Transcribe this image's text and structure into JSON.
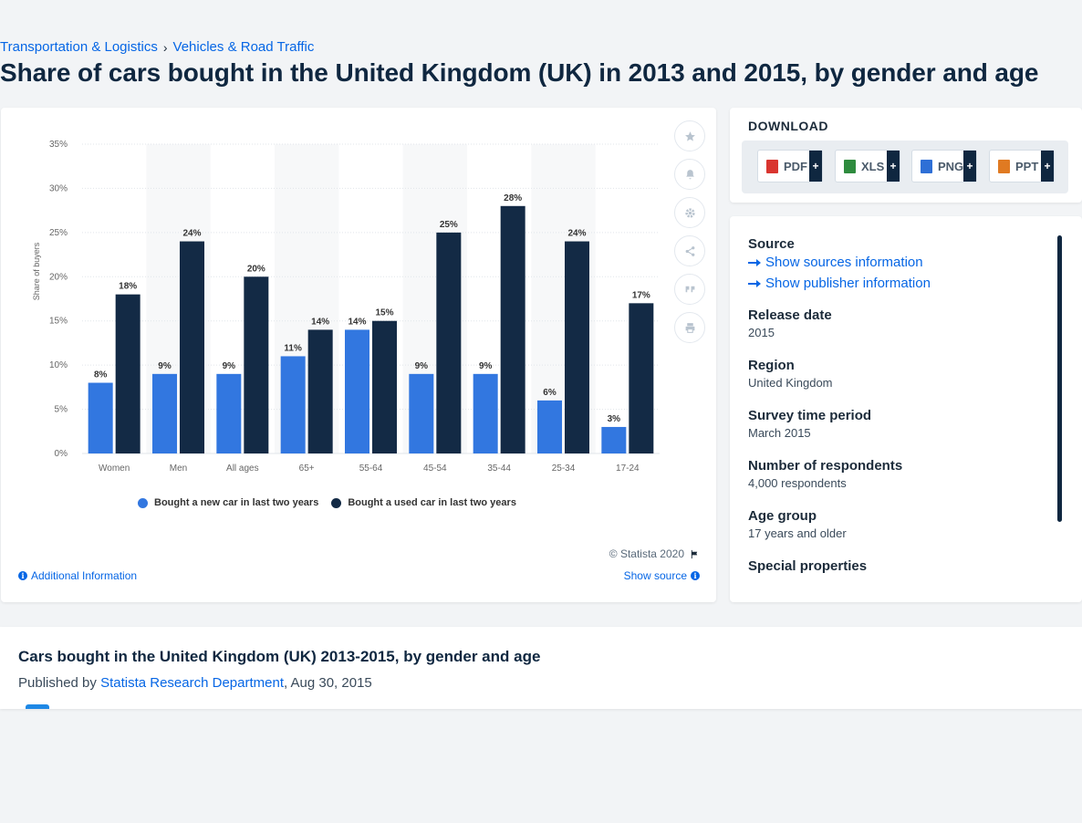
{
  "breadcrumb": {
    "item1": "Transportation & Logistics",
    "separator": "›",
    "item2": "Vehicles & Road Traffic"
  },
  "page_title": "Share of cars bought in the United Kingdom (UK) in 2013 and 2015, by gender and age",
  "chart": {
    "credit": "© Statista 2020",
    "additional_info": "Additional Information",
    "show_source": "Show source",
    "tools": [
      "star-icon",
      "bell-icon",
      "gear-icon",
      "share-icon",
      "quote-icon",
      "print-icon"
    ]
  },
  "chart_data": {
    "type": "bar",
    "title": "",
    "xlabel": "",
    "ylabel": "Share of buyers",
    "ylim": [
      0,
      35
    ],
    "yticks": [
      "0%",
      "5%",
      "10%",
      "15%",
      "20%",
      "25%",
      "30%",
      "35%"
    ],
    "grid": true,
    "legend_position": "bottom",
    "categories": [
      "Women",
      "Men",
      "All ages",
      "65+",
      "55-64",
      "45-54",
      "35-44",
      "25-34",
      "17-24"
    ],
    "series": [
      {
        "name": "Bought a new car in last two years",
        "color": "#3277e0",
        "values": [
          8,
          9,
          9,
          11,
          14,
          9,
          9,
          6,
          3
        ]
      },
      {
        "name": "Bought a used car in last two years",
        "color": "#132a45",
        "values": [
          18,
          24,
          20,
          14,
          15,
          25,
          28,
          24,
          17
        ]
      }
    ]
  },
  "download": {
    "title": "DOWNLOAD",
    "buttons": [
      {
        "label": "PDF",
        "color": "#d9352f"
      },
      {
        "label": "XLS",
        "color": "#2e8b3e"
      },
      {
        "label": "PNG",
        "color": "#2e6fd6"
      },
      {
        "label": "PPT",
        "color": "#e07a22"
      }
    ],
    "plus": "+"
  },
  "meta": {
    "source_label": "Source",
    "show_sources": "Show sources information",
    "show_publisher": "Show publisher information",
    "release_label": "Release date",
    "release_value": "2015",
    "region_label": "Region",
    "region_value": "United Kingdom",
    "survey_label": "Survey time period",
    "survey_value": "March 2015",
    "respondents_label": "Number of respondents",
    "respondents_value": "4,000 respondents",
    "age_label": "Age group",
    "age_value": "17 years and older",
    "special_label": "Special properties"
  },
  "bottom": {
    "title": "Cars bought in the United Kingdom (UK) 2013-2015, by gender and age",
    "published_by": "Published by ",
    "publisher": "Statista Research Department",
    "date": ", Aug 30, 2015"
  }
}
